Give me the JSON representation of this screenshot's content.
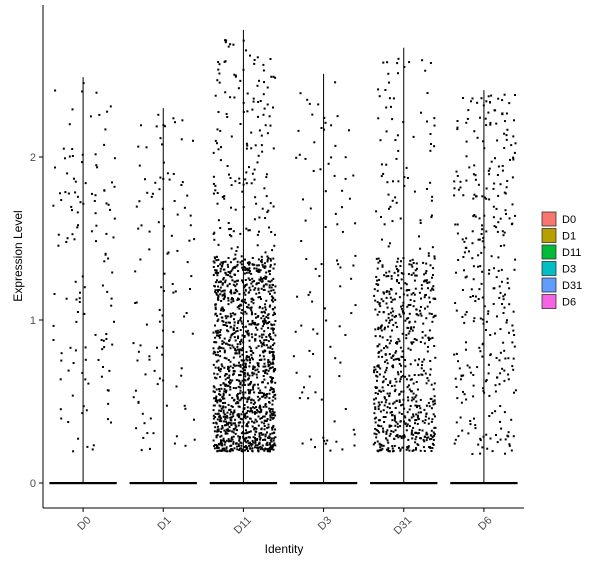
{
  "chart_data": {
    "type": "scatter",
    "subtype": "violin-jitter",
    "xlabel": "Identity",
    "ylabel": "Expression Level",
    "categories": [
      "D0",
      "D1",
      "D11",
      "D3",
      "D31",
      "D6"
    ],
    "ylim": [
      -0.15,
      2.8
    ],
    "yticks": [
      0,
      1,
      2
    ],
    "ytick_labels": [
      "0",
      "1",
      "2"
    ],
    "grid": false,
    "legend_position": "right",
    "legend": [
      {
        "label": "D0",
        "color": "#F8766D"
      },
      {
        "label": "D1",
        "color": "#B79F00"
      },
      {
        "label": "D11",
        "color": "#00BA38"
      },
      {
        "label": "D3",
        "color": "#00BFC4"
      },
      {
        "label": "D31",
        "color": "#619CFF"
      },
      {
        "label": "D6",
        "color": "#F564E3"
      }
    ],
    "series": [
      {
        "category": "D0",
        "max": 2.49,
        "n_points": 130
      },
      {
        "category": "D1",
        "max": 2.3,
        "n_points": 110
      },
      {
        "category": "D11",
        "max": 2.78,
        "n_points": 1500
      },
      {
        "category": "D3",
        "max": 2.51,
        "n_points": 95
      },
      {
        "category": "D31",
        "max": 2.67,
        "n_points": 720
      },
      {
        "category": "D6",
        "max": 2.41,
        "n_points": 330
      }
    ],
    "point_color": "#000000"
  }
}
